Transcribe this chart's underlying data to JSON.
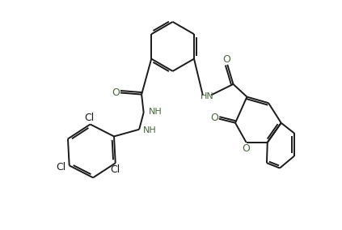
{
  "bg_color": "#ffffff",
  "bond_color": "#1a1a1a",
  "heteroatom_color": "#4a6741",
  "cl_color": "#1a1a1a",
  "lw": 1.4,
  "figsize": [
    4.23,
    2.84
  ],
  "dpi": 100,
  "xlim": [
    0,
    10
  ],
  "ylim": [
    0,
    6.7
  ]
}
